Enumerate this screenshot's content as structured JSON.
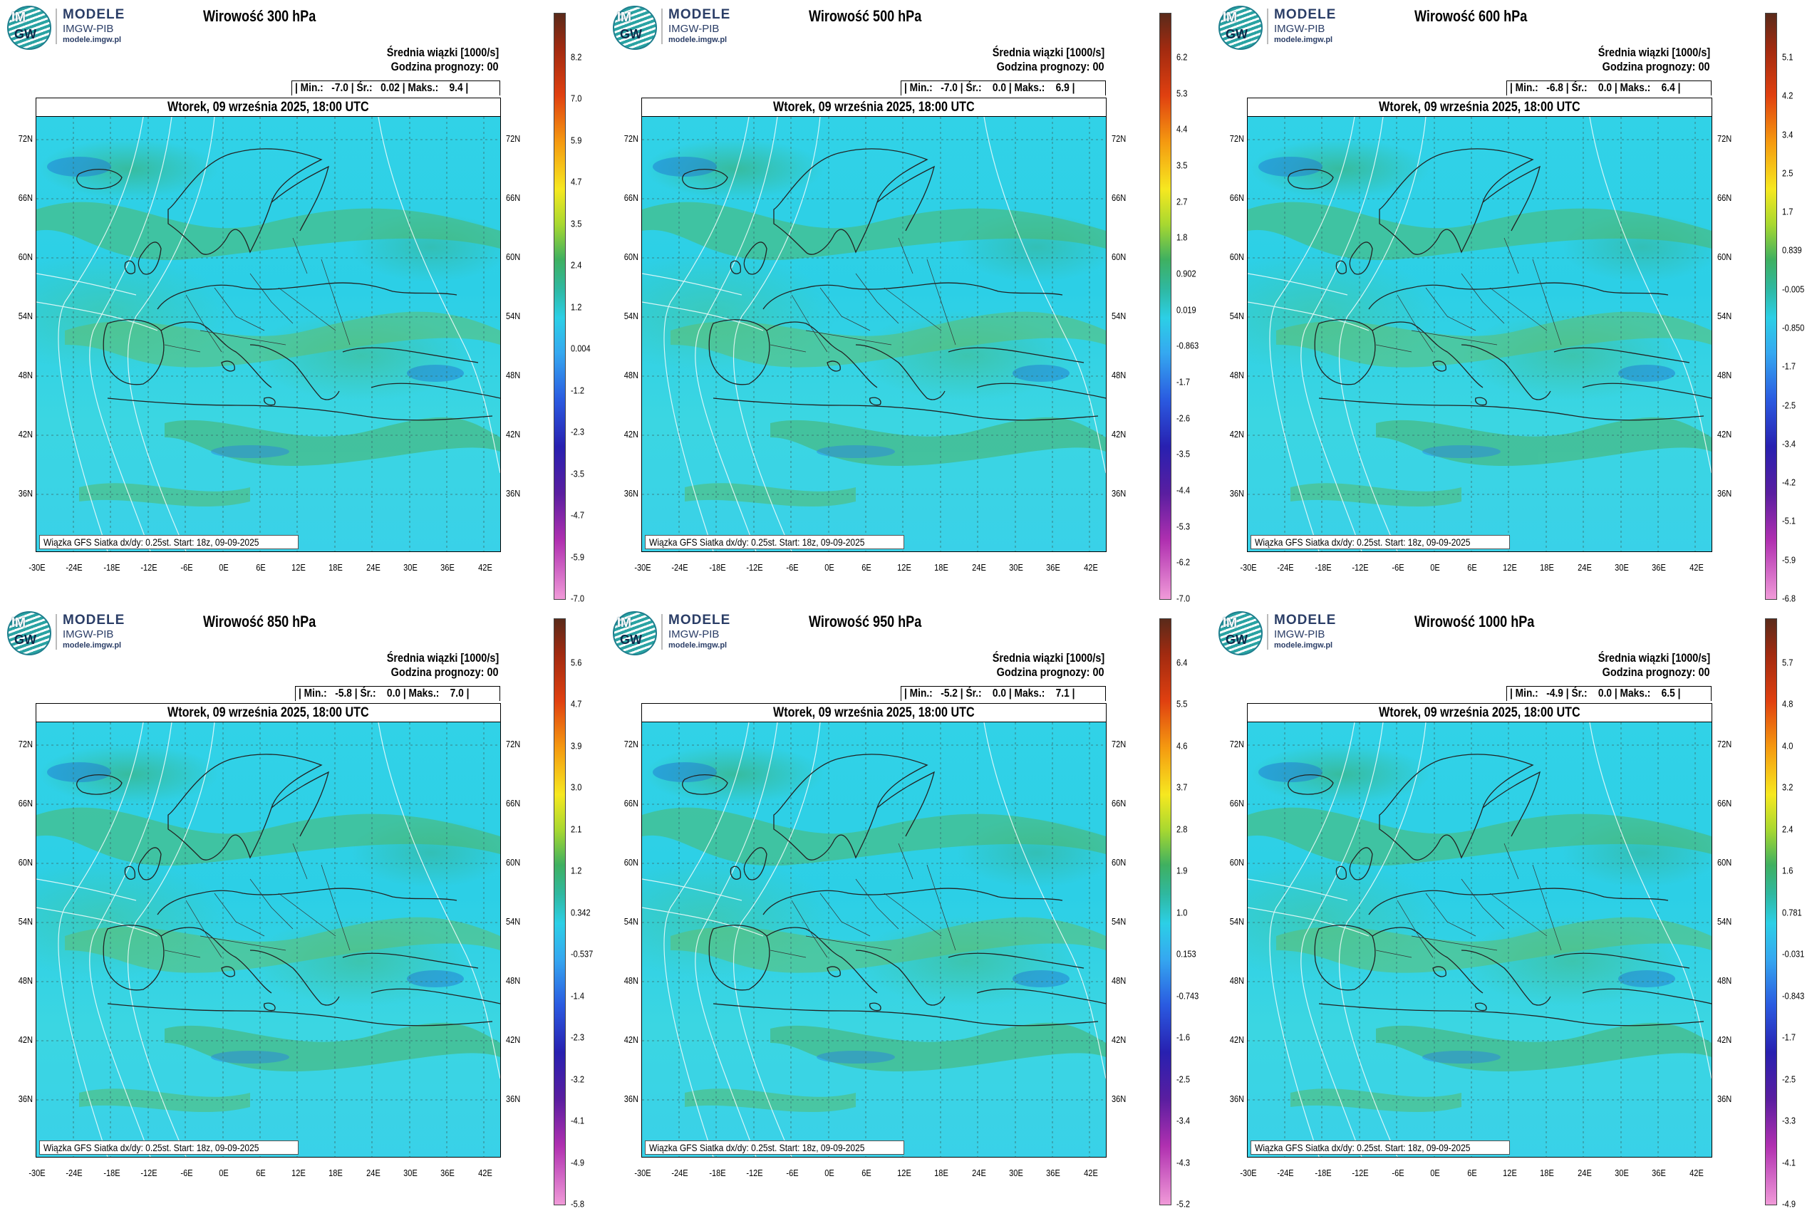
{
  "brand": {
    "logo_top": "IM",
    "logo_bottom": "GW",
    "line1": "MODELE",
    "line2": "IMGW-PIB",
    "line3": "modele.imgw.pl"
  },
  "common": {
    "legend_title": "Średnia wiązki [1000/s]",
    "forecast_hour": "Godzina prognozy: 00",
    "date": "Wtorek, 09 września 2025, 18:00 UTC",
    "source": "Wiązka GFS Siatka dx/dy: 0.25st. Start: 18z, 09-09-2025",
    "lat_labels": [
      "72N",
      "66N",
      "60N",
      "54N",
      "48N",
      "42N",
      "36N"
    ],
    "lon_labels": [
      "-30E",
      "-24E",
      "-18E",
      "-12E",
      "-6E",
      "0E",
      "6E",
      "12E",
      "18E",
      "24E",
      "30E",
      "36E",
      "42E"
    ],
    "colors": {
      "ocean_field": "#2ccfe6",
      "positive_vorticity": "#4fb86a",
      "negative_vorticity": "#1e6fd0",
      "coastline": "#222222",
      "isolines": "#ffffff"
    }
  },
  "panels": [
    {
      "title": "Wirowość 300 hPa",
      "stats": "| Min.:   -7.0 | Śr.:   0.02 | Maks.:    9.4 |",
      "cbar_labels": [
        "8.2",
        "7.0",
        "5.9",
        "4.7",
        "3.5",
        "2.4",
        "1.2",
        "0.004",
        "-1.2",
        "-2.3",
        "-3.5",
        "-4.7",
        "-5.9",
        "-7.0"
      ]
    },
    {
      "title": "Wirowość 500 hPa",
      "stats": "| Min.:   -7.0 | Śr.:    0.0 | Maks.:    6.9 |",
      "cbar_labels": [
        "6.2",
        "5.3",
        "4.4",
        "3.5",
        "2.7",
        "1.8",
        "0.902",
        "0.019",
        "-0.863",
        "-1.7",
        "-2.6",
        "-3.5",
        "-4.4",
        "-5.3",
        "-6.2",
        "-7.0"
      ]
    },
    {
      "title": "Wirowość 600 hPa",
      "stats": "| Min.:   -6.8 | Śr.:    0.0 | Maks.:    6.4 |",
      "cbar_labels": [
        "5.1",
        "4.2",
        "3.4",
        "2.5",
        "1.7",
        "0.839",
        "-0.005",
        "-0.850",
        "-1.7",
        "-2.5",
        "-3.4",
        "-4.2",
        "-5.1",
        "-5.9",
        "-6.8"
      ]
    },
    {
      "title": "Wirowość 850 hPa",
      "stats": "| Min.:   -5.8 | Śr.:    0.0 | Maks.:    7.0 |",
      "cbar_labels": [
        "5.6",
        "4.7",
        "3.9",
        "3.0",
        "2.1",
        "1.2",
        "0.342",
        "-0.537",
        "-1.4",
        "-2.3",
        "-3.2",
        "-4.1",
        "-4.9",
        "-5.8"
      ]
    },
    {
      "title": "Wirowość 950 hPa",
      "stats": "| Min.:   -5.2 | Śr.:    0.0 | Maks.:    7.1 |",
      "cbar_labels": [
        "6.4",
        "5.5",
        "4.6",
        "3.7",
        "2.8",
        "1.9",
        "1.0",
        "0.153",
        "-0.743",
        "-1.6",
        "-2.5",
        "-3.4",
        "-4.3",
        "-5.2"
      ]
    },
    {
      "title": "Wirowość 1000 hPa",
      "stats": "| Min.:   -4.9 | Śr.:    0.0 | Maks.:    6.5 |",
      "cbar_labels": [
        "5.7",
        "4.8",
        "4.0",
        "3.2",
        "2.4",
        "1.6",
        "0.781",
        "-0.031",
        "-0.843",
        "-1.7",
        "-2.5",
        "-3.3",
        "-4.1",
        "-4.9"
      ]
    }
  ]
}
